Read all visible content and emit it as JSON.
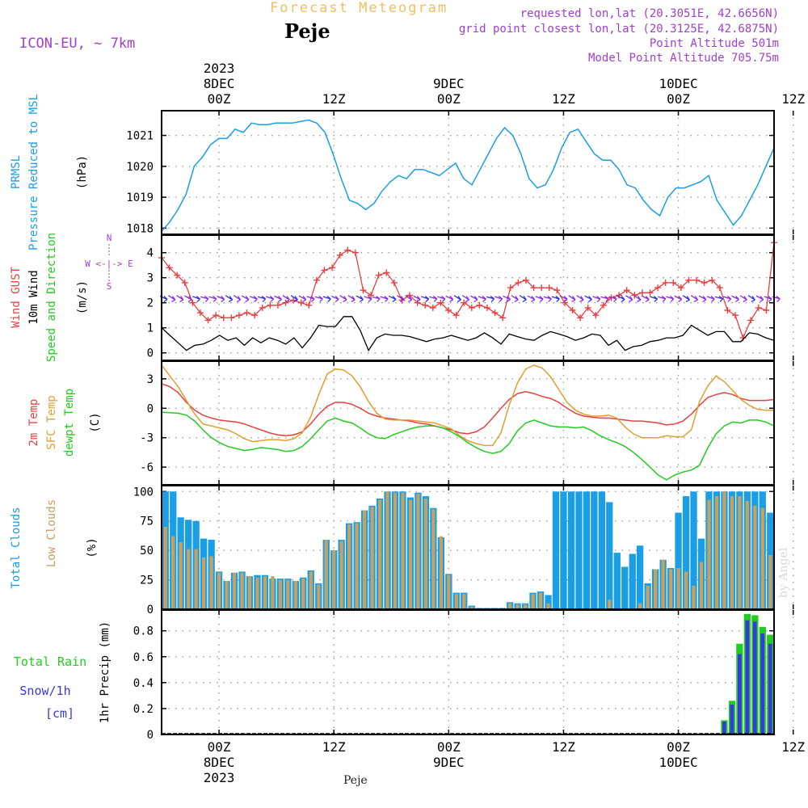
{
  "header": {
    "title": "Forecast Meteogram",
    "location": "Peje",
    "model": "ICON-EU, ~ 7km",
    "requested": "requested lon,lat (20.3051E, 42.6656N)",
    "grid_point": "grid point closest lon,lat (20.3125E, 42.6875N)",
    "point_altitude": "Point Altitude 501m",
    "model_altitude": "Model Point Altitude 705.75m",
    "footer_location": "Peje",
    "watermark": "by Angel"
  },
  "colors": {
    "pressure": "#1a9ee6",
    "gust": "#e84040",
    "wind": "#000000",
    "direction": "#22cc22",
    "temp": "#e84040",
    "sfc": "#e0a030",
    "dewpt": "#22cc22",
    "total_clouds": "#1a9ee6",
    "low_clouds": "#c8a060",
    "rain": "#22cc22",
    "snow": "#3838e0",
    "arrow": "#8a2be2",
    "label_purple": "#a040d0"
  },
  "chart_data": {
    "type": "line",
    "time_axis": {
      "start": "2023-12-07T09Z",
      "end": "2023-12-10T17Z",
      "top_ticks": [
        {
          "hour": 15,
          "lines": [
            "2023",
            "8DEC",
            "00Z"
          ]
        },
        {
          "hour": 27,
          "lines": [
            "12Z"
          ]
        },
        {
          "hour": 39,
          "lines": [
            "9DEC",
            "00Z"
          ]
        },
        {
          "hour": 51,
          "lines": [
            "12Z"
          ]
        },
        {
          "hour": 63,
          "lines": [
            "10DEC",
            "00Z"
          ]
        },
        {
          "hour": 75,
          "lines": [
            "12Z"
          ]
        }
      ],
      "bottom_ticks": [
        {
          "hour": 15,
          "lines": [
            "00Z",
            "8DEC",
            "2023"
          ]
        },
        {
          "hour": 27,
          "lines": [
            "12Z"
          ]
        },
        {
          "hour": 39,
          "lines": [
            "00Z",
            "9DEC"
          ]
        },
        {
          "hour": 51,
          "lines": [
            "12Z"
          ]
        },
        {
          "hour": 63,
          "lines": [
            "00Z",
            "10DEC"
          ]
        },
        {
          "hour": 75,
          "lines": [
            "12Z"
          ]
        }
      ]
    },
    "panels": {
      "pressure": {
        "title_lines": [
          "PRMSL",
          "Pressure Reduced to MSL"
        ],
        "unit": "(hPa)",
        "ylim": [
          1017.8,
          1021.8
        ],
        "yticks": [
          "1018",
          "1019",
          "1020",
          "1021"
        ],
        "series": [
          {
            "name": "PRMSL",
            "values": [
              1017.9,
              1018.2,
              1018.6,
              1019.1,
              1020.0,
              1020.3,
              1020.7,
              1020.9,
              1020.9,
              1021.2,
              1021.1,
              1021.4,
              1021.35,
              1021.35,
              1021.4,
              1021.4,
              1021.4,
              1021.45,
              1021.5,
              1021.4,
              1021.1,
              1020.4,
              1019.6,
              1018.9,
              1018.8,
              1018.6,
              1018.8,
              1019.2,
              1019.5,
              1019.7,
              1019.6,
              1019.9,
              1019.9,
              1019.8,
              1019.7,
              1019.9,
              1020.1,
              1019.6,
              1019.4,
              1019.9,
              1020.4,
              1020.9,
              1021.25,
              1021.0,
              1020.4,
              1019.6,
              1019.3,
              1019.4,
              1019.9,
              1020.6,
              1021.1,
              1021.2,
              1020.8,
              1020.4,
              1020.2,
              1020.2,
              1019.9,
              1019.4,
              1019.3,
              1018.9,
              1018.6,
              1018.4,
              1019.0,
              1019.3,
              1019.3,
              1019.4,
              1019.5,
              1019.7,
              1018.9,
              1018.5,
              1018.1,
              1018.4,
              1018.9,
              1019.4,
              1020.0,
              1020.6
            ]
          }
        ]
      },
      "wind": {
        "title_lines": [
          "Wind GUST",
          "10m Wind",
          "Speed and Direction"
        ],
        "unit": "(m/s)",
        "ylim": [
          -0.3,
          4.7
        ],
        "yticks": [
          "0",
          "1",
          "2",
          "3",
          "4"
        ],
        "compass": [
          "N",
          "W <-|-> E",
          "S"
        ],
        "series": [
          {
            "name": "Wind GUST",
            "values": [
              3.8,
              3.4,
              3.1,
              2.8,
              2.0,
              1.6,
              1.3,
              1.5,
              1.4,
              1.4,
              1.5,
              1.6,
              1.5,
              1.8,
              1.9,
              1.9,
              2.0,
              2.1,
              2.0,
              1.9,
              2.9,
              3.3,
              3.4,
              3.9,
              4.1,
              4.0,
              2.5,
              2.3,
              3.1,
              3.2,
              2.8,
              2.1,
              2.3,
              2.0,
              1.9,
              1.8,
              2.0,
              1.7,
              1.5,
              2.0,
              1.8,
              1.9,
              1.8,
              1.6,
              1.4,
              2.6,
              2.8,
              2.9,
              2.6,
              2.6,
              2.6,
              2.5,
              2.0,
              1.7,
              1.4,
              1.8,
              1.5,
              1.9,
              2.2,
              2.3,
              2.5,
              2.3,
              2.4,
              2.4,
              2.6,
              2.8,
              2.8,
              2.6,
              2.9,
              2.9,
              2.8,
              2.9,
              2.6,
              1.7,
              1.5,
              0.6,
              1.3,
              1.8,
              1.7,
              4.4
            ]
          },
          {
            "name": "10m Wind",
            "values": [
              1.0,
              0.7,
              0.4,
              0.1,
              0.3,
              0.35,
              0.5,
              0.7,
              0.5,
              0.6,
              0.3,
              0.6,
              0.4,
              0.6,
              0.5,
              0.35,
              0.6,
              0.2,
              0.6,
              1.1,
              1.05,
              1.05,
              1.45,
              1.45,
              0.9,
              0.1,
              0.6,
              0.75,
              0.7,
              0.7,
              0.65,
              0.55,
              0.45,
              0.55,
              0.6,
              0.7,
              0.6,
              0.5,
              0.6,
              0.8,
              0.6,
              0.35,
              0.75,
              0.65,
              0.55,
              0.5,
              0.7,
              0.85,
              0.75,
              0.65,
              0.5,
              0.6,
              0.75,
              0.7,
              0.3,
              0.5,
              0.1,
              0.25,
              0.3,
              0.45,
              0.5,
              0.6,
              0.6,
              0.7,
              1.1,
              0.9,
              0.7,
              0.85,
              0.85,
              0.45,
              0.45,
              0.8,
              0.75,
              0.6,
              0.5
            ]
          }
        ]
      },
      "temperature": {
        "title_lines": [
          "2m Temp",
          "SFC Temp",
          "dewpt Temp"
        ],
        "unit": "(C)",
        "ylim": [
          -7.8,
          4.8
        ],
        "yticks": [
          "-6",
          "-3",
          "0",
          "3"
        ],
        "series": [
          {
            "name": "2m Temp",
            "values": [
              2.5,
              2.2,
              1.6,
              0.6,
              -0.2,
              -0.7,
              -1.0,
              -1.2,
              -1.3,
              -1.4,
              -1.6,
              -1.9,
              -2.2,
              -2.5,
              -2.7,
              -2.8,
              -2.7,
              -2.4,
              -1.6,
              -0.6,
              0.2,
              0.6,
              0.6,
              0.4,
              0.0,
              -0.5,
              -0.8,
              -1.0,
              -1.1,
              -1.2,
              -1.3,
              -1.5,
              -1.6,
              -1.8,
              -2.0,
              -2.2,
              -2.5,
              -2.6,
              -2.4,
              -1.9,
              -1.0,
              0.0,
              0.9,
              1.5,
              1.7,
              1.5,
              1.2,
              1.0,
              0.6,
              0.0,
              -0.5,
              -0.8,
              -0.9,
              -1.0,
              -1.0,
              -1.1,
              -1.2,
              -1.3,
              -1.3,
              -1.4,
              -1.5,
              -1.7,
              -1.6,
              -1.3,
              -0.6,
              0.3,
              1.1,
              1.4,
              1.6,
              1.4,
              1.0,
              0.8,
              0.8,
              0.8,
              0.9
            ]
          },
          {
            "name": "SFC Temp",
            "values": [
              4.4,
              3.3,
              2.2,
              0.8,
              -0.6,
              -1.6,
              -1.8,
              -2.0,
              -2.2,
              -2.6,
              -3.1,
              -3.4,
              -3.3,
              -3.2,
              -3.2,
              -3.3,
              -3.1,
              -2.5,
              -0.9,
              1.4,
              3.5,
              4.0,
              3.9,
              3.3,
              2.2,
              0.7,
              -0.5,
              -1.1,
              -1.2,
              -1.2,
              -1.2,
              -1.3,
              -1.4,
              -1.5,
              -1.8,
              -2.1,
              -2.8,
              -3.3,
              -3.6,
              -3.8,
              -3.8,
              -2.5,
              0.3,
              2.6,
              4.0,
              4.4,
              4.1,
              3.2,
              1.9,
              0.6,
              -0.2,
              -0.6,
              -0.8,
              -0.8,
              -0.7,
              -1.0,
              -1.9,
              -2.6,
              -3.0,
              -3.0,
              -3.0,
              -2.8,
              -2.9,
              -2.9,
              -2.2,
              0.7,
              2.3,
              3.3,
              2.7,
              1.8,
              0.9,
              0.3,
              -0.1,
              -0.2,
              -0.2
            ]
          },
          {
            "name": "dewpt Temp",
            "values": [
              -0.4,
              -0.45,
              -0.5,
              -0.7,
              -1.3,
              -2.2,
              -3.0,
              -3.5,
              -3.9,
              -4.1,
              -4.3,
              -4.2,
              -4.0,
              -4.1,
              -4.2,
              -4.4,
              -4.3,
              -3.9,
              -3.1,
              -2.2,
              -1.3,
              -1.0,
              -1.3,
              -1.5,
              -2.0,
              -2.6,
              -3.0,
              -3.1,
              -2.7,
              -2.4,
              -2.1,
              -1.9,
              -1.8,
              -1.8,
              -2.0,
              -2.4,
              -2.9,
              -3.5,
              -4.0,
              -4.4,
              -4.6,
              -4.4,
              -3.6,
              -2.3,
              -1.5,
              -1.2,
              -1.5,
              -1.8,
              -1.9,
              -1.9,
              -2.0,
              -1.9,
              -2.3,
              -2.8,
              -3.2,
              -3.5,
              -3.9,
              -4.5,
              -5.2,
              -6.0,
              -6.8,
              -7.3,
              -6.8,
              -6.5,
              -6.3,
              -5.8,
              -4.0,
              -2.6,
              -1.8,
              -1.4,
              -1.5,
              -1.2,
              -1.2,
              -1.4,
              -1.8
            ]
          }
        ]
      },
      "clouds": {
        "title_lines": [
          "Total Clouds",
          "Low Clouds"
        ],
        "unit": "(%)",
        "ylim": [
          0,
          105
        ],
        "yticks": [
          "0",
          "25",
          "50",
          "75",
          "100"
        ],
        "series": [
          {
            "name": "Total Clouds",
            "values": [
              100,
              100,
              78,
              76,
              75,
              60,
              59,
              32,
              24,
              31,
              32,
              28,
              29,
              29,
              26,
              26,
              26,
              24,
              27,
              33,
              22,
              59,
              50,
              59,
              73,
              74,
              84,
              88,
              94,
              100,
              100,
              100,
              95,
              99,
              96,
              86,
              61,
              30,
              14,
              14,
              3,
              1,
              1,
              1,
              1,
              6,
              5,
              5,
              14,
              15,
              12,
              100,
              100,
              100,
              100,
              100,
              100,
              100,
              91,
              48,
              36,
              47,
              54,
              22,
              34,
              42,
              35,
              82,
              96,
              100,
              60,
              100,
              100,
              100,
              100,
              100,
              100,
              100,
              100,
              82
            ]
          },
          {
            "name": "Low Clouds",
            "values": [
              70,
              62,
              57,
              51,
              51,
              44,
              45,
              31,
              24,
              31,
              31,
              28,
              27,
              28,
              28,
              25,
              25,
              24,
              26,
              32,
              21,
              59,
              50,
              58,
              72,
              73,
              84,
              87,
              93,
              100,
              99,
              99,
              93,
              98,
              94,
              85,
              62,
              29,
              13,
              13,
              2,
              0,
              0,
              0,
              0,
              5,
              4,
              4,
              13,
              14,
              5,
              0,
              0,
              0,
              0,
              0,
              0,
              0,
              8,
              0,
              0,
              0,
              5,
              20,
              34,
              42,
              34,
              35,
              32,
              20,
              40,
              93,
              96,
              100,
              96,
              96,
              92,
              88,
              86,
              46
            ]
          }
        ]
      },
      "precip": {
        "title_lines": [
          "Total Rain",
          "Snow/1h",
          "[cm]"
        ],
        "axis_label": "1hr Precip (mm)",
        "ylim": [
          0,
          0.96
        ],
        "yticks": [
          "0",
          "0.2",
          "0.4",
          "0.6",
          "0.8"
        ],
        "series": [
          {
            "name": "Total Rain",
            "values": [
              0,
              0,
              0,
              0,
              0,
              0,
              0,
              0,
              0,
              0,
              0,
              0,
              0,
              0,
              0,
              0,
              0,
              0,
              0,
              0,
              0,
              0,
              0,
              0,
              0,
              0,
              0,
              0,
              0,
              0,
              0,
              0,
              0,
              0,
              0,
              0,
              0,
              0,
              0,
              0,
              0,
              0,
              0,
              0,
              0,
              0,
              0,
              0,
              0,
              0,
              0,
              0,
              0,
              0,
              0,
              0,
              0,
              0,
              0,
              0,
              0,
              0,
              0,
              0,
              0,
              0,
              0,
              0,
              0,
              0,
              0,
              0,
              0,
              0.11,
              0.26,
              0.7,
              0.93,
              0.92,
              0.83,
              0.77
            ]
          },
          {
            "name": "Snow/1h",
            "values": [
              0,
              0,
              0,
              0,
              0,
              0,
              0,
              0,
              0,
              0,
              0,
              0,
              0,
              0,
              0,
              0,
              0,
              0,
              0,
              0,
              0,
              0,
              0,
              0,
              0,
              0,
              0,
              0,
              0,
              0,
              0,
              0,
              0,
              0,
              0,
              0,
              0,
              0,
              0,
              0,
              0,
              0,
              0,
              0,
              0,
              0,
              0,
              0,
              0,
              0,
              0,
              0,
              0,
              0,
              0,
              0,
              0,
              0,
              0,
              0,
              0,
              0,
              0,
              0,
              0,
              0,
              0,
              0,
              0,
              0,
              0,
              0,
              0,
              0.1,
              0.23,
              0.62,
              0.88,
              0.87,
              0.78,
              0.7
            ]
          }
        ]
      }
    }
  }
}
